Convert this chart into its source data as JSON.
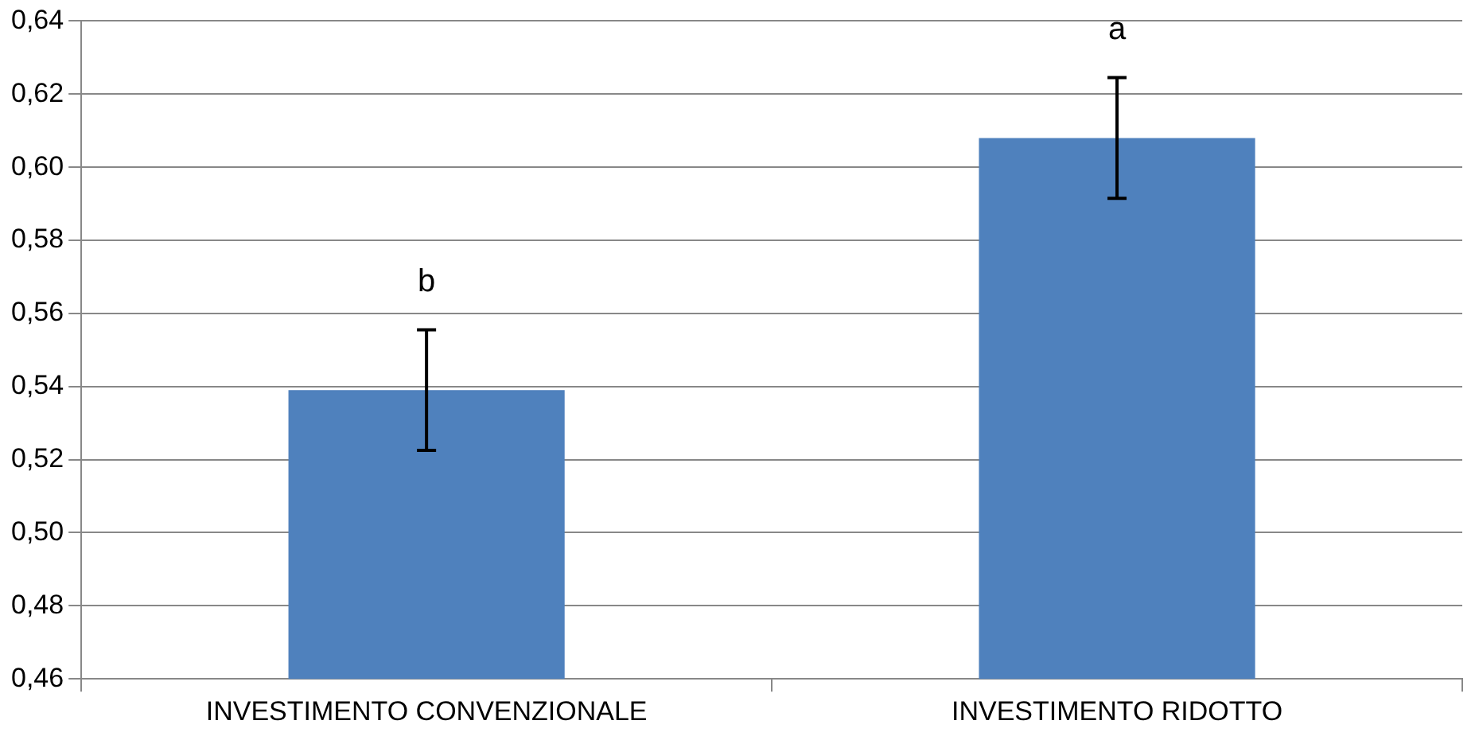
{
  "chart_data": {
    "type": "bar",
    "categories": [
      "INVESTIMENTO CONVENZIONALE",
      "INVESTIMENTO RIDOTTO"
    ],
    "values": [
      0.539,
      0.608
    ],
    "color": "#4f81bd",
    "errors": [
      0.0165,
      0.0165
    ],
    "ylim": [
      0.46,
      0.64
    ],
    "yticks": [
      {
        "value": 0.46,
        "label": "0,46"
      },
      {
        "value": 0.48,
        "label": "0,48"
      },
      {
        "value": 0.5,
        "label": "0,50"
      },
      {
        "value": 0.52,
        "label": "0,52"
      },
      {
        "value": 0.54,
        "label": "0,54"
      },
      {
        "value": 0.56,
        "label": "0,56"
      },
      {
        "value": 0.58,
        "label": "0,58"
      },
      {
        "value": 0.6,
        "label": "0,60"
      },
      {
        "value": 0.62,
        "label": "0,62"
      },
      {
        "value": 0.64,
        "label": "0,64"
      }
    ],
    "grid": "y",
    "legend": false,
    "annotations": [
      "b",
      "a"
    ]
  }
}
